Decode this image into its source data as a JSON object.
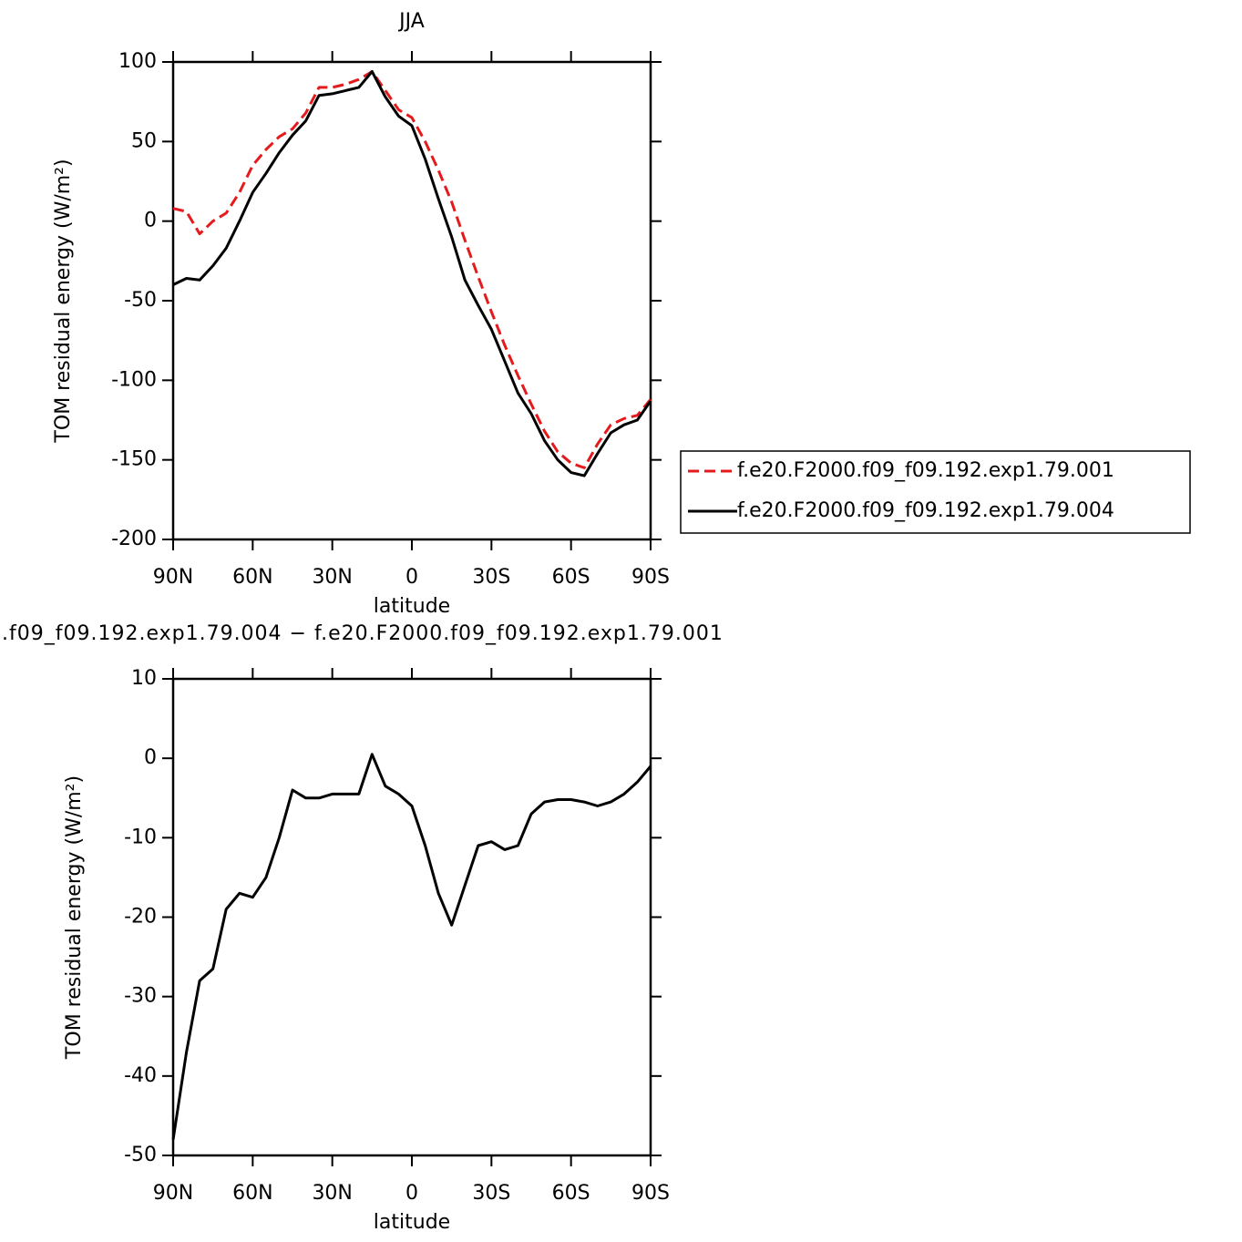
{
  "chart_data": [
    {
      "type": "line",
      "title": "JJA",
      "xlabel": "latitude",
      "ylabel": "TOM residual energy (W/m²)",
      "x": [
        90,
        85,
        80,
        75,
        70,
        65,
        60,
        55,
        50,
        45,
        40,
        35,
        30,
        25,
        20,
        15,
        10,
        5,
        0,
        -5,
        -10,
        -15,
        -20,
        -25,
        -30,
        -35,
        -40,
        -45,
        -50,
        -55,
        -60,
        -65,
        -70,
        -75,
        -80,
        -85,
        -90
      ],
      "xlim": [
        90,
        -90
      ],
      "xticks": [
        {
          "value": 90,
          "label": "90N"
        },
        {
          "value": 60,
          "label": "60N"
        },
        {
          "value": 30,
          "label": "30N"
        },
        0,
        {
          "value": -30,
          "label": "30S"
        },
        {
          "value": -60,
          "label": "60S"
        },
        {
          "value": -90,
          "label": "90S"
        }
      ],
      "ylim": [
        -200,
        100
      ],
      "yticks": [
        -200,
        -150,
        -100,
        -50,
        0,
        50,
        100
      ],
      "legend": "right",
      "series": [
        {
          "name": "f.e20.F2000.f09_f09.192.exp1.79.001",
          "color": "#e41a1c",
          "linestyle": "dashed",
          "values": [
            8,
            6,
            -8,
            0,
            5,
            18,
            35,
            45,
            53,
            58,
            68,
            84,
            84,
            86,
            89,
            94,
            82,
            70,
            65,
            50,
            32,
            12,
            -12,
            -35,
            -57,
            -78,
            -97,
            -115,
            -132,
            -145,
            -152,
            -155,
            -140,
            -128,
            -124,
            -122,
            -112
          ]
        },
        {
          "name": "f.e20.F2000.f09_f09.192.exp1.79.004",
          "color": "#000000",
          "linestyle": "solid",
          "values": [
            -40,
            -36,
            -37,
            -28,
            -17,
            0,
            18,
            30,
            43,
            54,
            63,
            79,
            80,
            82,
            84,
            94,
            78,
            66,
            60,
            39,
            14,
            -10,
            -37,
            -53,
            -68,
            -88,
            -108,
            -121,
            -138,
            -150,
            -158,
            -160,
            -146,
            -133,
            -128,
            -125,
            -113
          ]
        }
      ]
    },
    {
      "type": "line",
      "title": ".f09_f09.192.exp1.79.004 − f.e20.F2000.f09_f09.192.exp1.79.001",
      "xlabel": "latitude",
      "ylabel": "TOM residual energy (W/m²)",
      "x": [
        90,
        85,
        80,
        75,
        70,
        65,
        60,
        55,
        50,
        45,
        40,
        35,
        30,
        25,
        20,
        15,
        10,
        5,
        0,
        -5,
        -10,
        -15,
        -20,
        -25,
        -30,
        -35,
        -40,
        -45,
        -50,
        -55,
        -60,
        -65,
        -70,
        -75,
        -80,
        -85,
        -90
      ],
      "xlim": [
        90,
        -90
      ],
      "xticks": [
        {
          "value": 90,
          "label": "90N"
        },
        {
          "value": 60,
          "label": "60N"
        },
        {
          "value": 30,
          "label": "30N"
        },
        0,
        {
          "value": -30,
          "label": "30S"
        },
        {
          "value": -60,
          "label": "60S"
        },
        {
          "value": -90,
          "label": "90S"
        }
      ],
      "ylim": [
        -50,
        10
      ],
      "yticks": [
        -50,
        -40,
        -30,
        -20,
        -10,
        0,
        10
      ],
      "color": "#000000",
      "values": [
        -48,
        -37,
        -28,
        -26.5,
        -19,
        -17,
        -17.5,
        -15,
        -10,
        -4,
        -5,
        -5,
        -4.5,
        -4.5,
        -4.5,
        0.5,
        -3.5,
        -4.5,
        -6,
        -11,
        -17,
        -21,
        -16,
        -11,
        -10.5,
        -11.5,
        -11,
        -7,
        -5.5,
        -5.2,
        -5.2,
        -5.5,
        -6,
        -5.5,
        -4.5,
        -3,
        -1
      ]
    }
  ]
}
